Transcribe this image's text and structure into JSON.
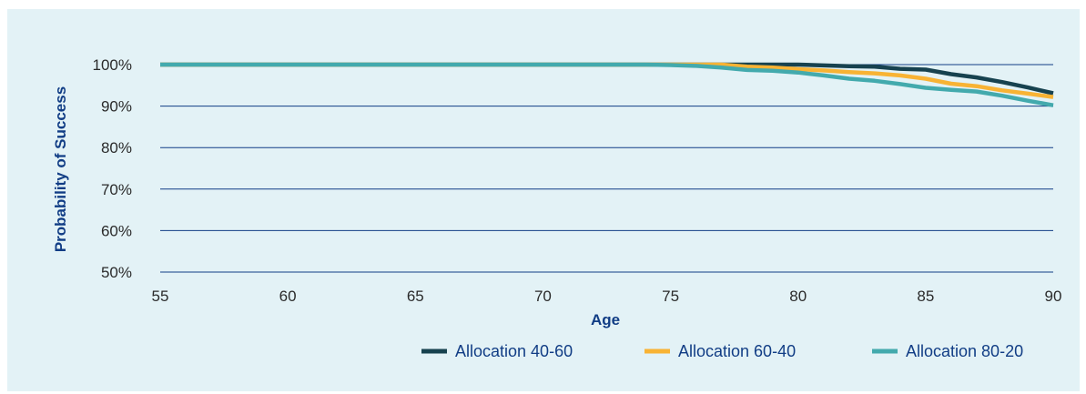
{
  "chart_data": {
    "type": "line",
    "xlabel": "Age",
    "ylabel": "Probability of Success",
    "xlim": [
      55,
      90
    ],
    "ylim": [
      50,
      100
    ],
    "x_ticks": [
      "55",
      "60",
      "65",
      "70",
      "75",
      "80",
      "85",
      "90"
    ],
    "y_ticks": [
      "100%",
      "90%",
      "80%",
      "70%",
      "60%",
      "50%"
    ],
    "grid": "horizontal",
    "legend_position": "bottom-right",
    "x": [
      55,
      60,
      65,
      70,
      74,
      75,
      76,
      77,
      78,
      79,
      80,
      81,
      82,
      83,
      84,
      85,
      86,
      87,
      88,
      89,
      90
    ],
    "series": [
      {
        "name": "Allocation 40-60",
        "color": "#17424f",
        "values": [
          100,
          100,
          100,
          100,
          100,
          100,
          100,
          100,
          100,
          100,
          100,
          99.8,
          99.6,
          99.5,
          99.0,
          98.8,
          97.7,
          96.9,
          95.8,
          94.5,
          93.1
        ]
      },
      {
        "name": "Allocation 60-40",
        "color": "#f8b334",
        "values": [
          100,
          100,
          100,
          100,
          100,
          100,
          100,
          100,
          99.5,
          99.3,
          98.9,
          98.6,
          98.2,
          97.9,
          97.4,
          96.6,
          95.4,
          94.8,
          93.8,
          93.0,
          92.2
        ]
      },
      {
        "name": "Allocation 80-20",
        "color": "#43aaad",
        "values": [
          100,
          100,
          100,
          100,
          100,
          99.9,
          99.7,
          99.3,
          98.7,
          98.5,
          98.1,
          97.4,
          96.6,
          96.1,
          95.3,
          94.4,
          93.9,
          93.5,
          92.5,
          91.3,
          90.2
        ]
      }
    ]
  }
}
